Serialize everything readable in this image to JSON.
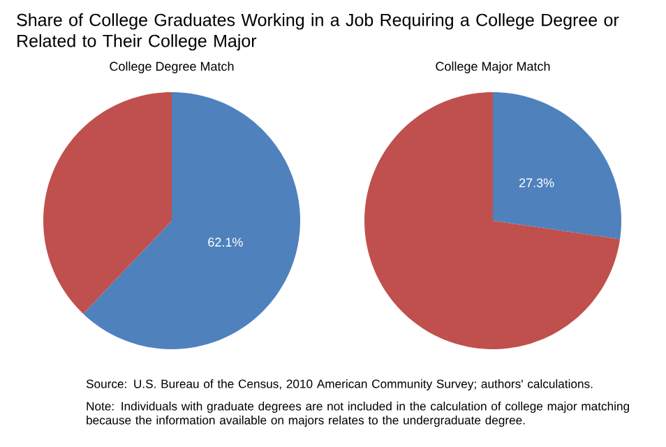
{
  "chart_data": [
    {
      "type": "other",
      "title": "Share of College Graduates Working in a Job Requiring a College Degree or Related to Their College Major",
      "annotations": [
        "Source: U.S. Bureau of the Census, 2010 American Community Survey; authors' calculations.",
        "Note: Individuals with graduate degrees are not included in the calculation of college major matching because the information available on majors relates to the undergraduate degree."
      ]
    },
    {
      "type": "pie",
      "title": "College Degree Match",
      "categories": [
        null,
        null
      ],
      "values": [
        62.1,
        37.9
      ],
      "colors": [
        "#4f81bd",
        "#c0504d"
      ],
      "value_labels": [
        "62.1%",
        null
      ]
    },
    {
      "type": "pie",
      "title": "College Major Match",
      "categories": [
        null,
        null
      ],
      "values": [
        27.3,
        72.7
      ],
      "colors": [
        "#4f81bd",
        "#c0504d"
      ],
      "value_labels": [
        "27.3%",
        null
      ]
    }
  ]
}
